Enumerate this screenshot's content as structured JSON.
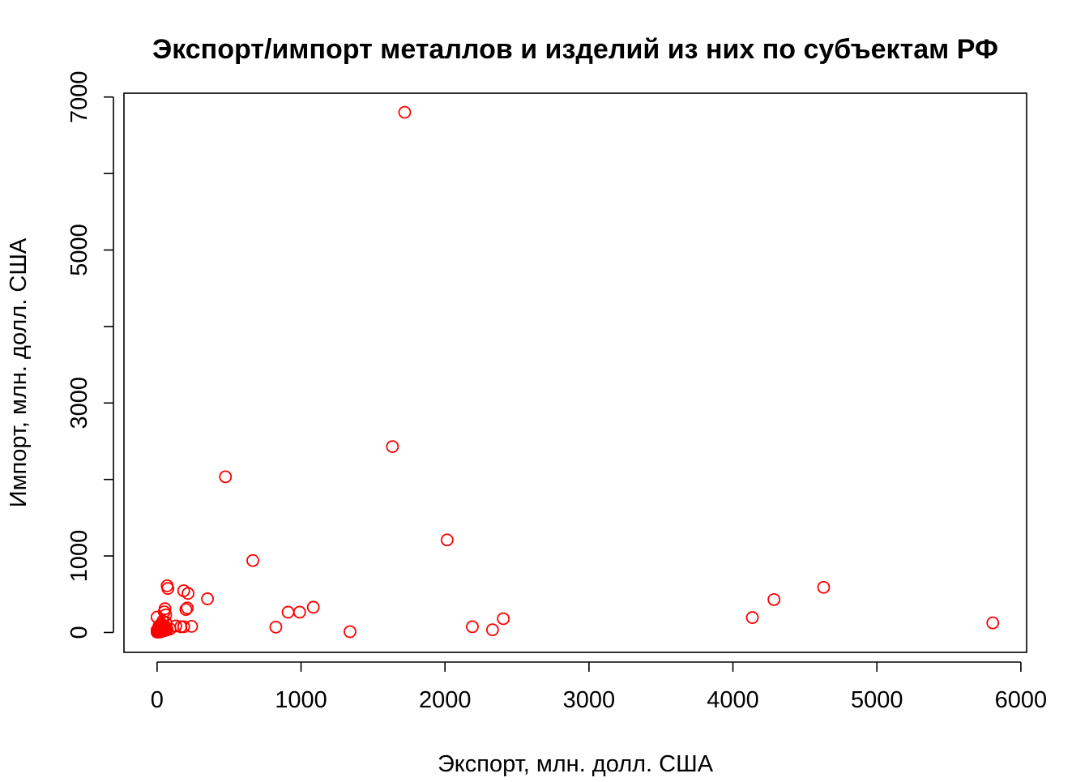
{
  "chart_data": {
    "type": "scatter",
    "title": "Экспорт/импорт металлов и изделий из них по субъектам РФ",
    "xlabel": "Экспорт, млн. долл. США",
    "ylabel": "Импорт, млн. долл. США",
    "xlim": [
      -230,
      6040
    ],
    "ylim": [
      -260,
      7050
    ],
    "x_ticks": [
      0,
      1000,
      2000,
      3000,
      4000,
      5000,
      6000
    ],
    "x_tick_labels": [
      "0",
      "1000",
      "2000",
      "3000",
      "4000",
      "5000",
      "6000"
    ],
    "y_ticks": [
      0,
      1000,
      2000,
      3000,
      4000,
      5000,
      6000,
      7000
    ],
    "y_tick_labels": [
      "0",
      "1000",
      "",
      "3000",
      "",
      "5000",
      "",
      "7000"
    ],
    "grid": false,
    "legend": "none",
    "point_color": "#ff0000",
    "point_shape": "open-circle",
    "series": [
      {
        "points": [
          [
            1720,
            6800
          ],
          [
            1635,
            2430
          ],
          [
            475,
            2035
          ],
          [
            2015,
            1210
          ],
          [
            665,
            940
          ],
          [
            4630,
            590
          ],
          [
            4285,
            430
          ],
          [
            4135,
            195
          ],
          [
            5805,
            125
          ],
          [
            2405,
            180
          ],
          [
            2190,
            75
          ],
          [
            2330,
            35
          ],
          [
            1085,
            330
          ],
          [
            990,
            265
          ],
          [
            910,
            265
          ],
          [
            825,
            70
          ],
          [
            1340,
            10
          ],
          [
            350,
            440
          ],
          [
            70,
            610
          ],
          [
            75,
            575
          ],
          [
            185,
            545
          ],
          [
            215,
            510
          ],
          [
            210,
            320
          ],
          [
            200,
            300
          ],
          [
            240,
            80
          ],
          [
            185,
            75
          ],
          [
            165,
            75
          ],
          [
            130,
            85
          ],
          [
            90,
            45
          ],
          [
            55,
            310
          ],
          [
            50,
            270
          ],
          [
            60,
            230
          ],
          [
            0,
            200
          ],
          [
            40,
            150
          ],
          [
            60,
            130
          ],
          [
            30,
            110
          ],
          [
            45,
            95
          ],
          [
            15,
            90
          ],
          [
            35,
            75
          ],
          [
            20,
            70
          ],
          [
            50,
            65
          ],
          [
            10,
            60
          ],
          [
            25,
            55
          ],
          [
            40,
            50
          ],
          [
            5,
            45
          ],
          [
            15,
            40
          ],
          [
            30,
            35
          ],
          [
            45,
            30
          ],
          [
            0,
            30
          ],
          [
            10,
            25
          ],
          [
            20,
            20
          ],
          [
            35,
            15
          ],
          [
            5,
            15
          ],
          [
            25,
            10
          ],
          [
            0,
            5
          ],
          [
            15,
            5
          ],
          [
            55,
            25
          ],
          [
            65,
            55
          ],
          [
            70,
            35
          ],
          [
            8,
            12
          ]
        ]
      }
    ]
  }
}
